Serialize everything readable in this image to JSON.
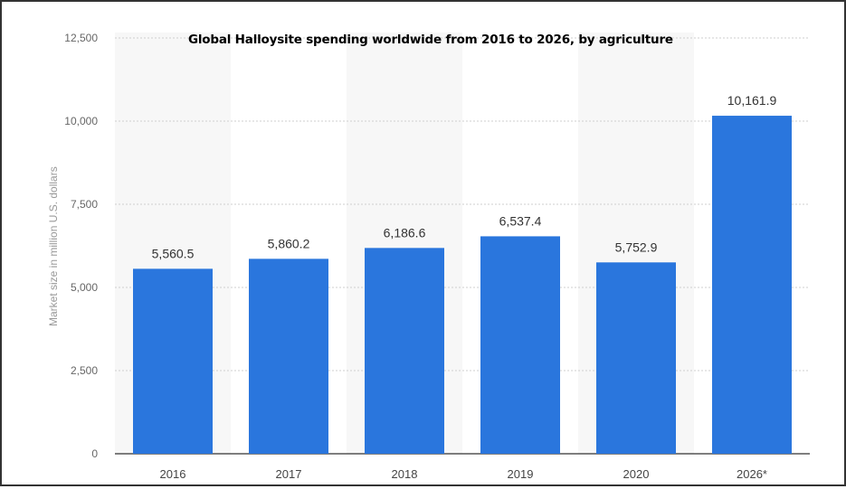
{
  "chart_data": {
    "type": "bar",
    "title": "Global Halloysite spending worldwide from 2016 to 2026, by agriculture",
    "ylabel": "Market size in million U.S. dollars",
    "xlabel": "",
    "categories": [
      "2016",
      "2017",
      "2018",
      "2019",
      "2020",
      "2026*"
    ],
    "values": [
      5560.5,
      5860.2,
      6186.6,
      6537.4,
      5752.9,
      10161.9
    ],
    "value_labels": [
      "5,560.5",
      "5,860.2",
      "6,186.6",
      "6,537.4",
      "5,752.9",
      "10,161.9"
    ],
    "ylim": [
      0,
      12500
    ],
    "yticks": [
      0,
      2500,
      5000,
      7500,
      10000,
      12500
    ],
    "ytick_labels": [
      "0",
      "2,500",
      "5,000",
      "7,500",
      "10,000",
      "12,500"
    ],
    "grid": true,
    "legend": "none",
    "bar_color": "#2a76dd"
  }
}
